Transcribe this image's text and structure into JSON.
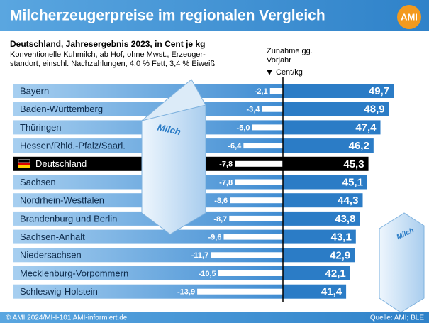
{
  "chart_data": {
    "type": "bar",
    "title": "Milcherzeugerpreise im regionalen Vergleich",
    "logo": "AMI",
    "subtitle": "Deutschland, Jahresergebnis 2023, in Cent je kg",
    "notes": [
      "Konventionelle Kuhmilch, ab Hof, ohne Mwst., Erzeuger-",
      "standort, einschl. Nachzahlungen, 4,0 % Fett, 3,4 % Eiweiß"
    ],
    "change_header": [
      "Zunahme gg.",
      "Vorjahr"
    ],
    "unit_label": "Cent/kg",
    "categories": [
      "Bayern",
      "Baden-Württemberg",
      "Thüringen",
      "Hessen/Rhld.-Pfalz/Saarl.",
      "Deutschland",
      "Sachsen",
      "Nordrhein-Westfalen",
      "Brandenburg und Berlin",
      "Sachsen-Anhalt",
      "Niedersachsen",
      "Mecklenburg-Vorpommern",
      "Schleswig-Holstein"
    ],
    "highlight": "Deutschland",
    "highlight_color": "#000000",
    "series": [
      {
        "color": "#2b7cc6",
        "values": [
          49.7,
          48.9,
          47.4,
          46.2,
          45.3,
          45.1,
          44.3,
          43.8,
          43.1,
          42.9,
          42.1,
          41.4
        ],
        "value_labels": [
          "49,7",
          "48,9",
          "47,4",
          "46,2",
          "45,3",
          "45,1",
          "44,3",
          "43,8",
          "43,1",
          "42,9",
          "42,1",
          "41,4"
        ]
      },
      {
        "color": "#ffffff",
        "values": [
          -2.1,
          -3.4,
          -5.0,
          -6.4,
          -7.8,
          -7.8,
          -8.6,
          -8.7,
          -9.6,
          -11.7,
          -10.5,
          -13.9
        ],
        "value_labels": [
          "-2,1",
          "-3,4",
          "-5,0",
          "-6,4",
          "-7,8",
          "-7,8",
          "-8,6",
          "-8,7",
          "-9,6",
          "-11,7",
          "-10,5",
          "-13,9"
        ]
      }
    ],
    "carton_label": "Milch",
    "footer": {
      "left": "© AMI 2024/MI-I-101 AMI-informiert.de",
      "right": "Quelle: AMI; BLE"
    }
  }
}
